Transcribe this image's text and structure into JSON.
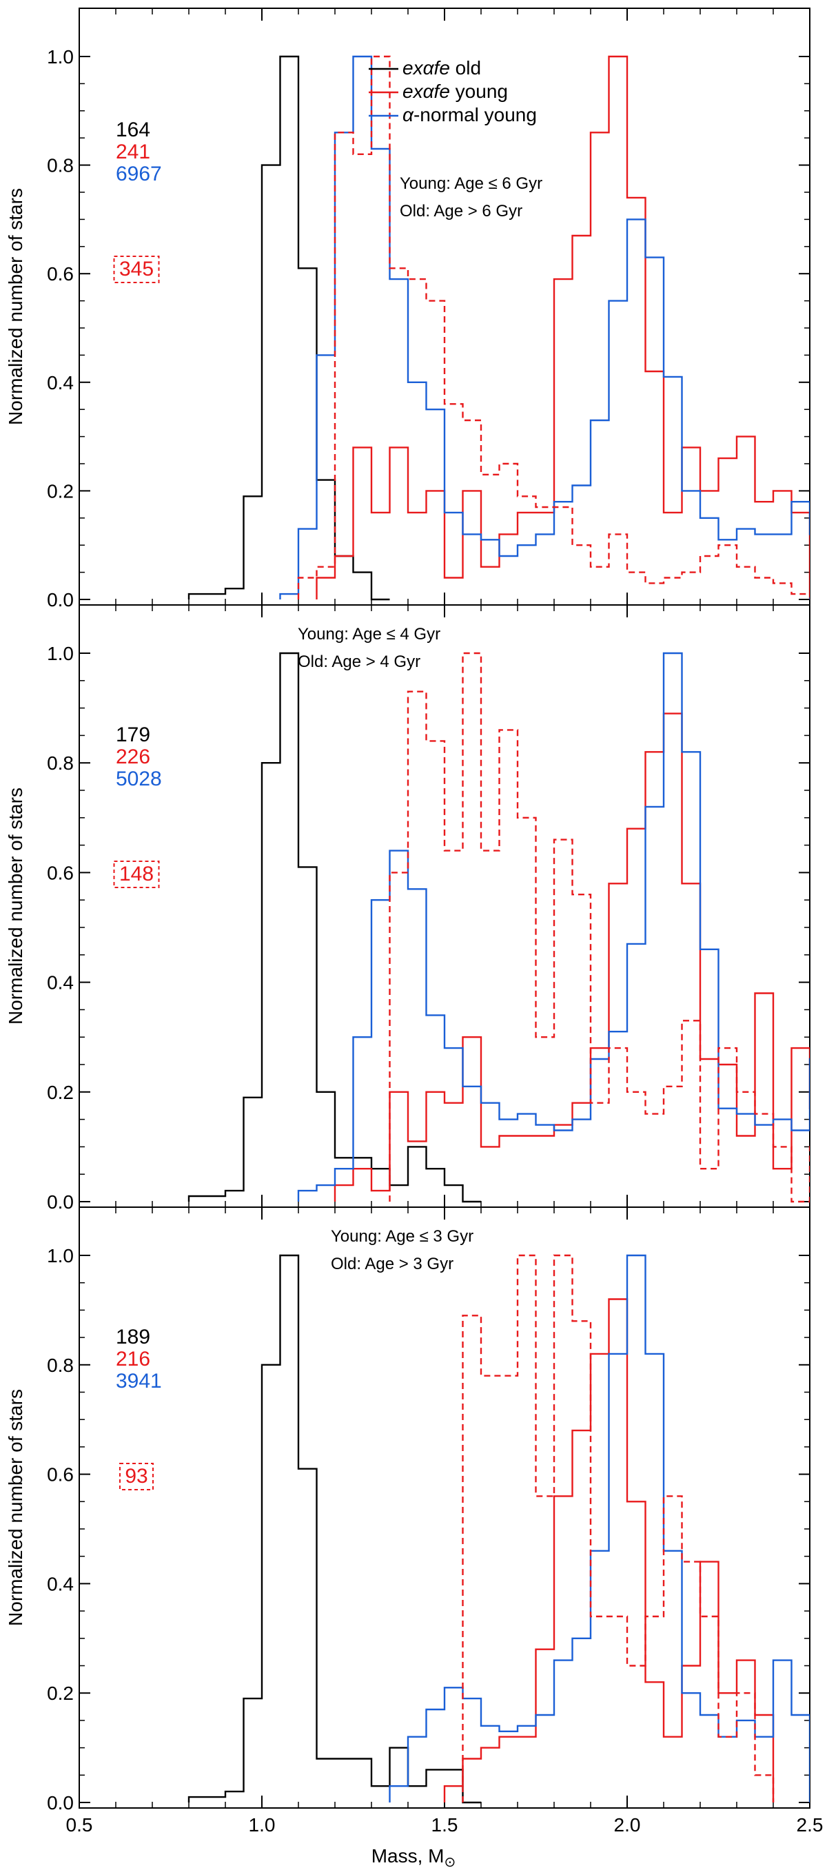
{
  "figure": {
    "xlabel": "Mass, M",
    "xlabel_symbol": "⊙"
  },
  "chart_data": [
    {
      "type": "step-histogram",
      "ylabel": "Normalized number of stars",
      "xlim": [
        0.5,
        2.5
      ],
      "ylim": [
        0.0,
        1.0
      ],
      "yticks": [
        "0.0",
        "0.2",
        "0.4",
        "0.6",
        "0.8",
        "1.0"
      ],
      "xticks": [
        "0.5",
        "1.0",
        "1.5",
        "2.0",
        "2.5"
      ],
      "bin_width": 0.05,
      "legend": [
        {
          "label_prefix": "",
          "label_italic": "exαfe",
          "label_suffix": " old",
          "color": "#000000"
        },
        {
          "label_prefix": "",
          "label_italic": "exαfe",
          "label_suffix": " young",
          "color": "#e8191b"
        },
        {
          "label_prefix": "",
          "label_italic": "α",
          "label_suffix": "-normal young",
          "color": "#1a5fd6"
        }
      ],
      "age_text": [
        "Young: Age ≤ 6 Gyr",
        "Old: Age > 6 Gyr"
      ],
      "counts": [
        {
          "value": "164",
          "color": "#000000"
        },
        {
          "value": "241",
          "color": "#e8191b"
        },
        {
          "value": "6967",
          "color": "#1a5fd6"
        }
      ],
      "boxed_count": {
        "value": "345",
        "color": "#e8191b"
      },
      "series": [
        {
          "name": "exαfe old",
          "color": "#000000",
          "style": "solid",
          "x_start": 0.8,
          "values": [
            0.01,
            0.01,
            0.02,
            0.19,
            0.8,
            1.0,
            0.61,
            0.22,
            0.08,
            0.05,
            0.0
          ]
        },
        {
          "name": "exαfe young",
          "color": "#e8191b",
          "style": "solid",
          "x_start": 1.15,
          "values": [
            0.04,
            0.08,
            0.28,
            0.16,
            0.28,
            0.16,
            0.2,
            0.04,
            0.2,
            0.06,
            0.12,
            0.16,
            0.16,
            0.59,
            0.67,
            0.86,
            1.0,
            0.74,
            0.42,
            0.16,
            0.28,
            0.2,
            0.26,
            0.3,
            0.18,
            0.2,
            0.16
          ]
        },
        {
          "name": "α-normal young",
          "color": "#1a5fd6",
          "style": "solid",
          "x_start": 1.05,
          "values": [
            0.01,
            0.13,
            0.45,
            0.86,
            1.0,
            0.83,
            0.59,
            0.4,
            0.35,
            0.16,
            0.12,
            0.11,
            0.08,
            0.1,
            0.12,
            0.18,
            0.21,
            0.33,
            0.55,
            0.7,
            0.63,
            0.41,
            0.2,
            0.15,
            0.11,
            0.13,
            0.12,
            0.12,
            0.18,
            0.12
          ]
        },
        {
          "name": "exαfe young (dashed)",
          "color": "#e8191b",
          "style": "dashed",
          "x_start": 1.1,
          "values": [
            0.04,
            0.06,
            0.86,
            0.82,
            1.0,
            0.61,
            0.59,
            0.55,
            0.36,
            0.33,
            0.23,
            0.25,
            0.19,
            0.17,
            0.17,
            0.1,
            0.06,
            0.12,
            0.05,
            0.03,
            0.04,
            0.05,
            0.08,
            0.1,
            0.06,
            0.04,
            0.03,
            0.01,
            0.01,
            0.01
          ]
        }
      ]
    },
    {
      "type": "step-histogram",
      "ylabel": "Normalized number of stars",
      "xlim": [
        0.5,
        2.5
      ],
      "ylim": [
        0.0,
        1.0
      ],
      "yticks": [
        "0.0",
        "0.2",
        "0.4",
        "0.6",
        "0.8",
        "1.0"
      ],
      "xticks": [
        "0.5",
        "1.0",
        "1.5",
        "2.0",
        "2.5"
      ],
      "bin_width": 0.05,
      "legend": [],
      "age_text": [
        "Young: Age ≤ 4 Gyr",
        "Old: Age > 4 Gyr"
      ],
      "counts": [
        {
          "value": "179",
          "color": "#000000"
        },
        {
          "value": "226",
          "color": "#e8191b"
        },
        {
          "value": "5028",
          "color": "#1a5fd6"
        }
      ],
      "boxed_count": {
        "value": "148",
        "color": "#e8191b"
      },
      "series": [
        {
          "name": "exαfe old",
          "color": "#000000",
          "style": "solid",
          "x_start": 0.8,
          "values": [
            0.01,
            0.01,
            0.02,
            0.19,
            0.8,
            1.0,
            0.61,
            0.2,
            0.08,
            0.08,
            0.06,
            0.03,
            0.1,
            0.06,
            0.03,
            0.0
          ]
        },
        {
          "name": "exαfe young",
          "color": "#e8191b",
          "style": "solid",
          "x_start": 1.2,
          "values": [
            0.03,
            0.06,
            0.02,
            0.2,
            0.11,
            0.2,
            0.18,
            0.3,
            0.1,
            0.12,
            0.12,
            0.12,
            0.14,
            0.18,
            0.28,
            0.58,
            0.68,
            0.82,
            0.89,
            0.58,
            0.26,
            0.25,
            0.12,
            0.38,
            0.06,
            0.28,
            0.17
          ]
        },
        {
          "name": "α-normal young",
          "color": "#1a5fd6",
          "style": "solid",
          "x_start": 1.1,
          "values": [
            0.02,
            0.03,
            0.06,
            0.3,
            0.55,
            0.64,
            0.57,
            0.34,
            0.28,
            0.21,
            0.18,
            0.15,
            0.16,
            0.14,
            0.13,
            0.15,
            0.26,
            0.31,
            0.47,
            0.72,
            1.0,
            0.82,
            0.46,
            0.17,
            0.16,
            0.14,
            0.15,
            0.13,
            0.26,
            0.16
          ]
        },
        {
          "name": "exαfe young (dashed)",
          "color": "#e8191b",
          "style": "dashed",
          "x_start": 1.35,
          "values": [
            0.6,
            0.93,
            0.84,
            0.64,
            1.0,
            0.64,
            0.86,
            0.7,
            0.3,
            0.66,
            0.56,
            0.18,
            0.28,
            0.2,
            0.16,
            0.21,
            0.33,
            0.06,
            0.28,
            0.2,
            0.16,
            0.1,
            0.0,
            0.1
          ]
        }
      ]
    },
    {
      "type": "step-histogram",
      "ylabel": "Normalized number of stars",
      "xlim": [
        0.5,
        2.5
      ],
      "ylim": [
        0.0,
        1.0
      ],
      "yticks": [
        "0.0",
        "0.2",
        "0.4",
        "0.6",
        "0.8",
        "1.0"
      ],
      "xticks": [
        "0.5",
        "1.0",
        "1.5",
        "2.0",
        "2.5"
      ],
      "bin_width": 0.05,
      "legend": [],
      "age_text": [
        "Young: Age ≤ 3 Gyr",
        "Old: Age > 3 Gyr"
      ],
      "counts": [
        {
          "value": "189",
          "color": "#000000"
        },
        {
          "value": "216",
          "color": "#e8191b"
        },
        {
          "value": "3941",
          "color": "#1a5fd6"
        }
      ],
      "boxed_count": {
        "value": "93",
        "color": "#e8191b"
      },
      "series": [
        {
          "name": "exαfe old",
          "color": "#000000",
          "style": "solid",
          "x_start": 0.8,
          "values": [
            0.01,
            0.01,
            0.02,
            0.19,
            0.8,
            1.0,
            0.61,
            0.08,
            0.08,
            0.08,
            0.03,
            0.1,
            0.03,
            0.06,
            0.06,
            0.0
          ]
        },
        {
          "name": "exαfe young",
          "color": "#e8191b",
          "style": "solid",
          "x_start": 1.5,
          "values": [
            0.03,
            0.08,
            0.1,
            0.12,
            0.12,
            0.28,
            0.56,
            0.68,
            0.82,
            0.92,
            0.55,
            0.22,
            0.12,
            0.25,
            0.44,
            0.2,
            0.26,
            0.16
          ]
        },
        {
          "name": "α-normal young",
          "color": "#1a5fd6",
          "style": "solid",
          "x_start": 1.35,
          "values": [
            0.03,
            0.12,
            0.17,
            0.21,
            0.19,
            0.14,
            0.13,
            0.14,
            0.16,
            0.26,
            0.3,
            0.46,
            0.82,
            1.0,
            0.82,
            0.46,
            0.2,
            0.16,
            0.12,
            0.15,
            0.12,
            0.26,
            0.16
          ]
        },
        {
          "name": "exαfe young (dashed)",
          "color": "#e8191b",
          "style": "dashed",
          "x_start": 1.55,
          "values": [
            0.89,
            0.78,
            0.78,
            1.0,
            0.56,
            1.0,
            0.88,
            0.34,
            0.34,
            0.25,
            0.34,
            0.56,
            0.44,
            0.34,
            0.12,
            0.2,
            0.05
          ]
        }
      ]
    }
  ]
}
